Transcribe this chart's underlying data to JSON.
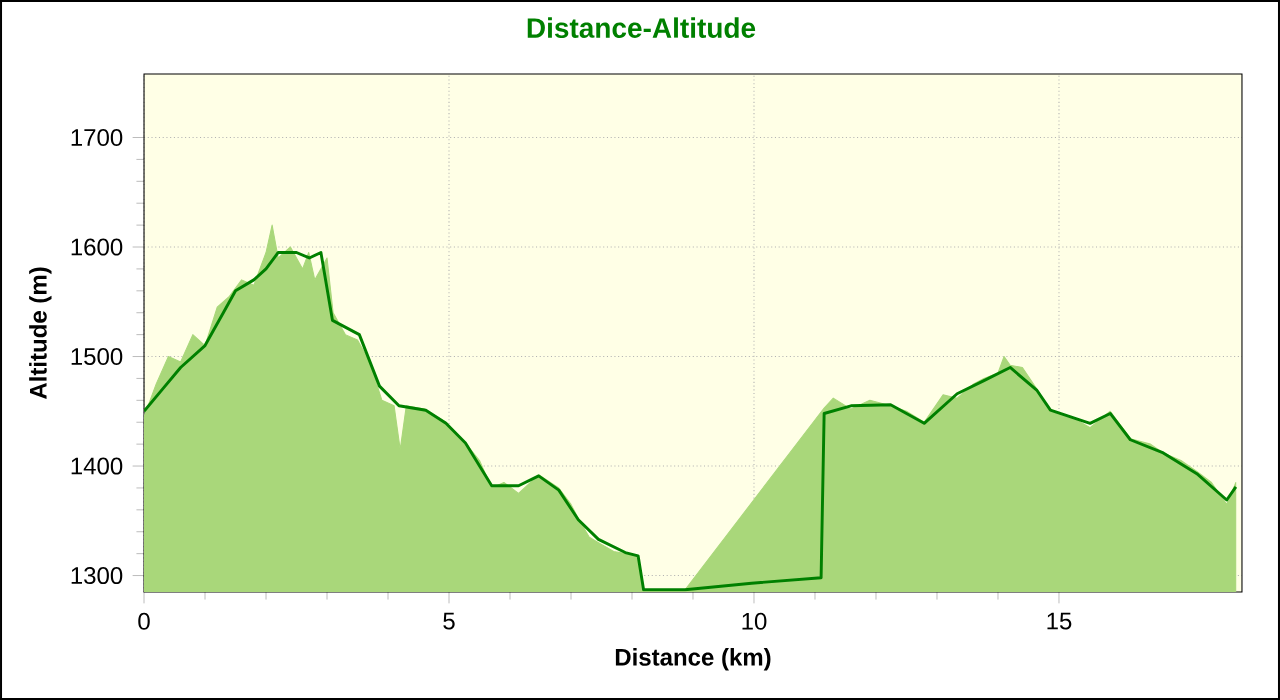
{
  "chart_data": {
    "type": "area",
    "title": "Distance-Altitude",
    "xlabel": "Distance (km)",
    "ylabel": "Altitude (m)",
    "xlim": [
      0,
      18
    ],
    "ylim": [
      1285,
      1758
    ],
    "xticks": [
      0,
      5,
      10,
      15
    ],
    "yticks": [
      1300,
      1400,
      1500,
      1600,
      1700
    ],
    "grid": true,
    "marker": "none",
    "line_style": "solid",
    "series": [
      {
        "color": "#a9d77a",
        "x": [
          0,
          0.2,
          0.4,
          0.6,
          0.8,
          1.0,
          1.2,
          1.4,
          1.6,
          1.8,
          2.0,
          2.1,
          2.2,
          2.4,
          2.6,
          2.7,
          2.8,
          3.0,
          3.1,
          3.3,
          3.5,
          3.7,
          3.9,
          4.1,
          4.2,
          4.3,
          4.6,
          4.95,
          5.27,
          5.5,
          5.7,
          5.9,
          6.14,
          6.47,
          6.8,
          7.0,
          7.12,
          7.3,
          7.45,
          7.7,
          7.89,
          8.1,
          8.19,
          8.87,
          11.15,
          11.3,
          11.59,
          11.9,
          12.24,
          12.5,
          12.79,
          13.1,
          13.33,
          13.6,
          13.77,
          14.0,
          14.1,
          14.2,
          14.4,
          14.64,
          14.86,
          15.2,
          15.51,
          15.84,
          16.17,
          16.5,
          16.71,
          17.0,
          17.26,
          17.5,
          17.75,
          17.9
        ],
        "values": [
          1445,
          1475,
          1500,
          1495,
          1520,
          1510,
          1545,
          1555,
          1570,
          1565,
          1595,
          1620,
          1590,
          1600,
          1580,
          1595,
          1570,
          1590,
          1540,
          1520,
          1515,
          1495,
          1460,
          1455,
          1415,
          1455,
          1452,
          1440,
          1421,
          1405,
          1380,
          1385,
          1375,
          1392,
          1380,
          1365,
          1352,
          1335,
          1330,
          1322,
          1320,
          1318,
          1287,
          1287,
          1453,
          1462,
          1452,
          1460,
          1455,
          1450,
          1440,
          1465,
          1462,
          1475,
          1480,
          1485,
          1500,
          1492,
          1490,
          1470,
          1450,
          1445,
          1435,
          1450,
          1425,
          1420,
          1412,
          1405,
          1395,
          1385,
          1365,
          1385
        ]
      },
      {
        "type": "line",
        "color": "#008000",
        "x": [
          0,
          0.3,
          0.6,
          1.0,
          1.3,
          1.5,
          1.8,
          2.0,
          2.2,
          2.5,
          2.71,
          2.9,
          3.09,
          3.53,
          3.86,
          4.18,
          4.62,
          4.95,
          5.27,
          5.7,
          6.14,
          6.47,
          6.8,
          7.12,
          7.45,
          7.89,
          8.1,
          8.19,
          8.87,
          9.96,
          11.1,
          11.15,
          11.59,
          12.24,
          12.79,
          13.33,
          13.77,
          14.2,
          14.64,
          14.86,
          15.51,
          15.84,
          16.17,
          16.71,
          17.26,
          17.75,
          17.9
        ],
        "values": [
          1450,
          1470,
          1490,
          1510,
          1540,
          1560,
          1570,
          1580,
          1595,
          1595,
          1590,
          1595,
          1533,
          1520,
          1473,
          1455,
          1451,
          1439,
          1421,
          1382,
          1382,
          1391,
          1378,
          1351,
          1333,
          1321,
          1318,
          1287,
          1287,
          1293,
          1298,
          1448,
          1455,
          1456,
          1439,
          1466,
          1478,
          1490,
          1469,
          1451,
          1439,
          1448,
          1424,
          1412,
          1393,
          1369,
          1381
        ]
      }
    ]
  }
}
